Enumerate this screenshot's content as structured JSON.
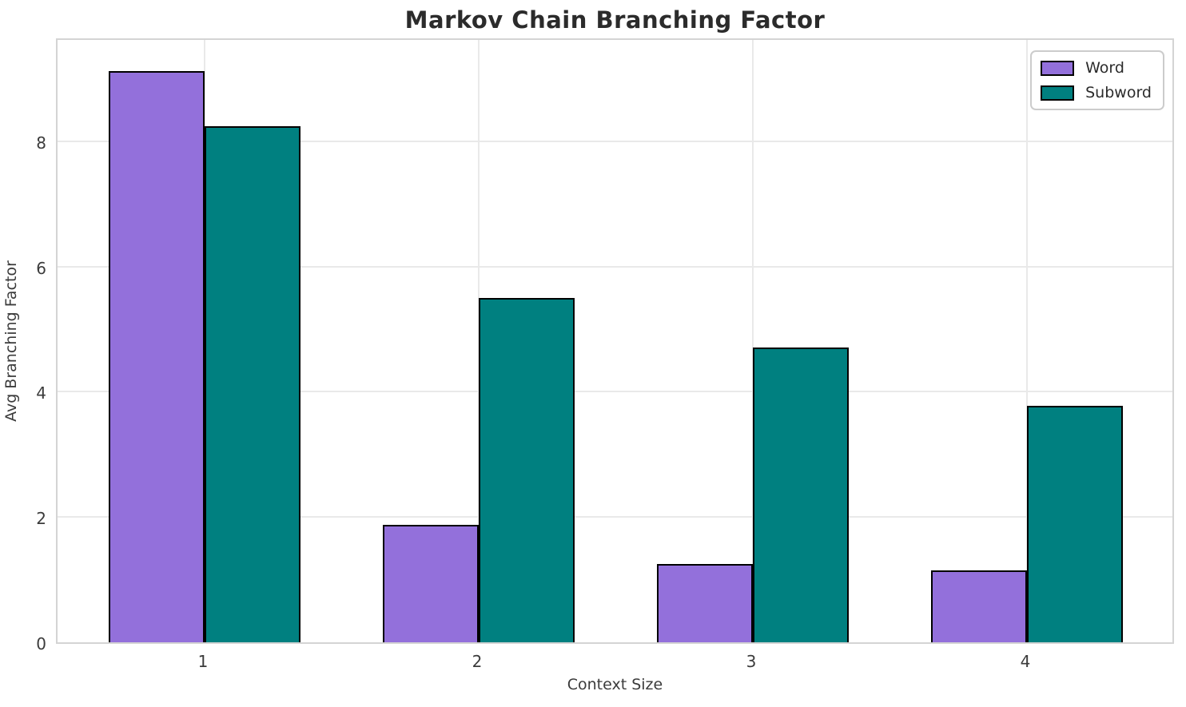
{
  "title": "Markov Chain Branching Factor",
  "chart_data": {
    "type": "bar",
    "title": "Markov Chain Branching Factor",
    "xlabel": "Context Size",
    "ylabel": "Avg Branching Factor",
    "categories": [
      "1",
      "2",
      "3",
      "4"
    ],
    "series": [
      {
        "name": "Word",
        "color": "#9370DB",
        "values": [
          9.12,
          1.87,
          1.25,
          1.15
        ]
      },
      {
        "name": "Subword",
        "color": "#008080",
        "values": [
          8.24,
          5.5,
          4.71,
          3.78
        ]
      }
    ],
    "yticks": [
      0,
      2,
      4,
      6,
      8
    ],
    "ylim": [
      0,
      9.67
    ],
    "grid": true,
    "bar_edge_color": "#000000",
    "legend_position": "upper right"
  },
  "colors": {
    "word_fill": "#9370DB",
    "subword_fill": "#008080",
    "bar_edge": "#000000",
    "grid": "#e9e9e9",
    "spine": "#d4d4d4",
    "title_text": "#2b2b2b",
    "tick_text": "#3b3b3b",
    "background": "#ffffff"
  }
}
